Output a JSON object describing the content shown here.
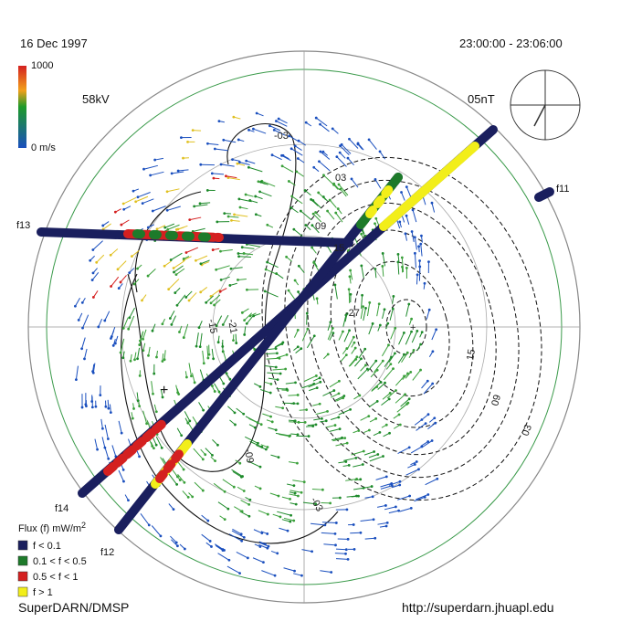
{
  "header": {
    "date": "16 Dec 1997",
    "time_range": "23:00:00 - 23:06:00",
    "potential": "58kV",
    "imf": "05nT"
  },
  "scale": {
    "max": "1000",
    "min": "0 m/s"
  },
  "satellites": [
    "f11",
    "f13",
    "f14",
    "f12"
  ],
  "contours": [
    "-03",
    "03",
    "09",
    "15",
    "-27",
    "15",
    "09",
    "03",
    "-09",
    "-03",
    "-15",
    "-21"
  ],
  "legend": {
    "title": "Flux (f) mW/m",
    "title_sup": "2",
    "items": [
      {
        "label": "f < 0.1",
        "color": "#1a1f5e"
      },
      {
        "label": "0.1 < f < 0.5",
        "color": "#1d7a2a"
      },
      {
        "label": "0.5 < f < 1",
        "color": "#d42020"
      },
      {
        "label": "f > 1",
        "color": "#f2ee1a"
      }
    ]
  },
  "footer": {
    "source": "SuperDARN/DMSP",
    "url": "http://superdarn.jhuapl.edu"
  }
}
